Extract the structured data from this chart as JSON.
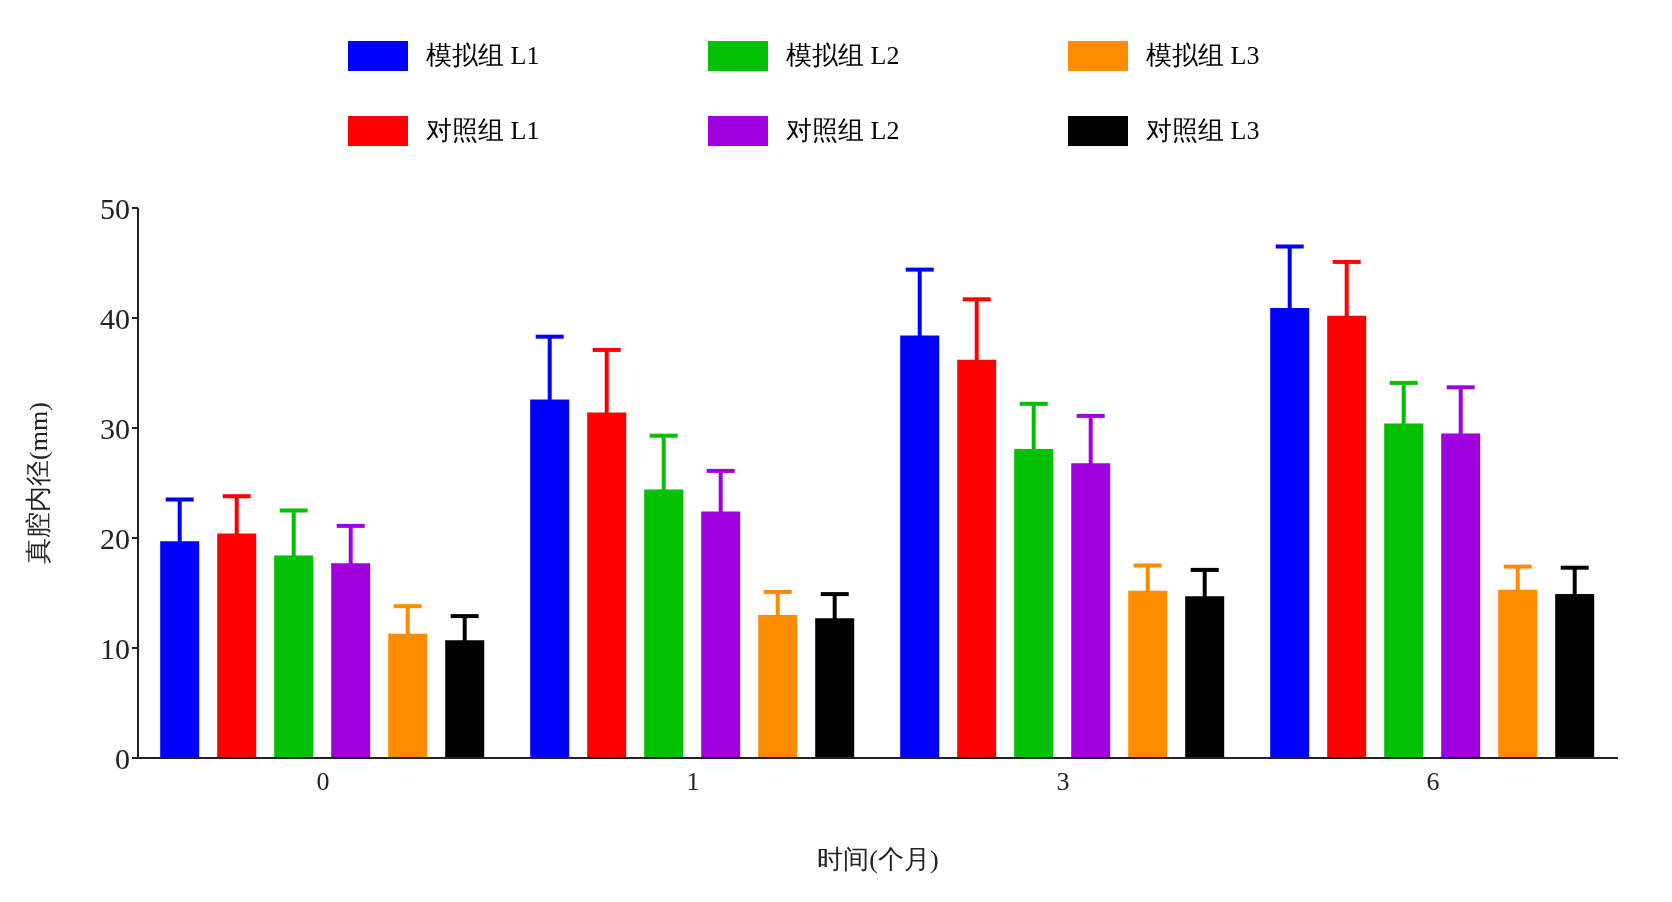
{
  "chart_data": {
    "type": "bar",
    "xlabel": "时间(个月)",
    "ylabel": "真腔内径(mm)",
    "categories": [
      "0",
      "1",
      "3",
      "6"
    ],
    "series": [
      {
        "name": "模拟组 L1",
        "color": "#0000ff",
        "values": [
          19.7,
          32.6,
          38.4,
          40.9
        ],
        "errors": [
          3.8,
          5.7,
          6.0,
          5.6
        ]
      },
      {
        "name": "对照组 L1",
        "color": "#ff0000",
        "values": [
          20.4,
          31.4,
          36.2,
          40.2
        ],
        "errors": [
          3.4,
          5.7,
          5.5,
          4.9
        ]
      },
      {
        "name": "模拟组 L2",
        "color": "#00c000",
        "values": [
          18.4,
          24.4,
          28.1,
          30.4
        ],
        "errors": [
          4.1,
          4.9,
          4.1,
          3.7
        ]
      },
      {
        "name": "对照组 L2",
        "color": "#a000e0",
        "values": [
          17.7,
          22.4,
          26.8,
          29.5
        ],
        "errors": [
          3.4,
          3.7,
          4.3,
          4.2
        ]
      },
      {
        "name": "模拟组 L3",
        "color": "#ff8c00",
        "values": [
          11.3,
          13.0,
          15.2,
          15.3
        ],
        "errors": [
          2.5,
          2.1,
          2.3,
          2.1
        ]
      },
      {
        "name": "对照组 L3",
        "color": "#000000",
        "values": [
          10.7,
          12.7,
          14.7,
          14.9
        ],
        "errors": [
          2.2,
          2.2,
          2.4,
          2.4
        ]
      }
    ],
    "ylim": [
      0,
      50
    ],
    "yticks": [
      0,
      10,
      20,
      30,
      40,
      50
    ],
    "grid": false,
    "legend": "top"
  }
}
